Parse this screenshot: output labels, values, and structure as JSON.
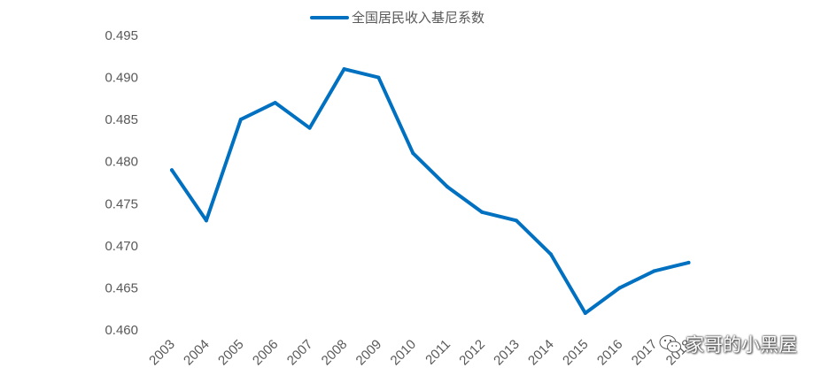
{
  "chart_data": {
    "type": "line",
    "title": "",
    "xlabel": "",
    "ylabel": "",
    "categories": [
      "2003",
      "2004",
      "2005",
      "2006",
      "2007",
      "2008",
      "2009",
      "2010",
      "2011",
      "2012",
      "2013",
      "2014",
      "2015",
      "2016",
      "2017",
      "2018"
    ],
    "series": [
      {
        "name": "全国居民收入基尼系数",
        "color": "#0070C0",
        "values": [
          0.479,
          0.473,
          0.485,
          0.487,
          0.484,
          0.491,
          0.49,
          0.481,
          0.477,
          0.474,
          0.473,
          0.469,
          0.462,
          0.465,
          0.467,
          0.468
        ]
      }
    ],
    "ylim": [
      0.46,
      0.495
    ],
    "yticks": [
      "0.460",
      "0.465",
      "0.470",
      "0.475",
      "0.480",
      "0.485",
      "0.490",
      "0.495"
    ],
    "grid": false,
    "legend_position": "top-center"
  },
  "watermark": {
    "text": "家哥的小黑屋",
    "icon": "wechat-icon"
  }
}
